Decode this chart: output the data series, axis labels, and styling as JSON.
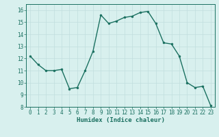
{
  "x": [
    0,
    1,
    2,
    3,
    4,
    5,
    6,
    7,
    8,
    9,
    10,
    11,
    12,
    13,
    14,
    15,
    16,
    17,
    18,
    19,
    20,
    21,
    22,
    23
  ],
  "y": [
    12.2,
    11.5,
    11.0,
    11.0,
    11.1,
    9.5,
    9.6,
    11.0,
    12.6,
    15.6,
    14.9,
    15.1,
    15.4,
    15.5,
    15.8,
    15.9,
    14.9,
    13.3,
    13.2,
    12.2,
    10.0,
    9.6,
    9.7,
    8.1
  ],
  "line_color": "#1a7060",
  "marker_color": "#1a7060",
  "bg_color": "#d8f0ee",
  "grid_color": "#c0dede",
  "xlabel": "Humidex (Indice chaleur)",
  "xlabel_color": "#1a7060",
  "tick_color": "#1a7060",
  "spine_color": "#1a7060",
  "ylim": [
    8,
    16.5
  ],
  "xlim": [
    -0.5,
    23.5
  ],
  "yticks": [
    8,
    9,
    10,
    11,
    12,
    13,
    14,
    15,
    16
  ],
  "xticks": [
    0,
    1,
    2,
    3,
    4,
    5,
    6,
    7,
    8,
    9,
    10,
    11,
    12,
    13,
    14,
    15,
    16,
    17,
    18,
    19,
    20,
    21,
    22,
    23
  ],
  "tick_fontsize": 5.5,
  "xlabel_fontsize": 6.5,
  "linewidth": 1.0,
  "markersize": 2.0
}
